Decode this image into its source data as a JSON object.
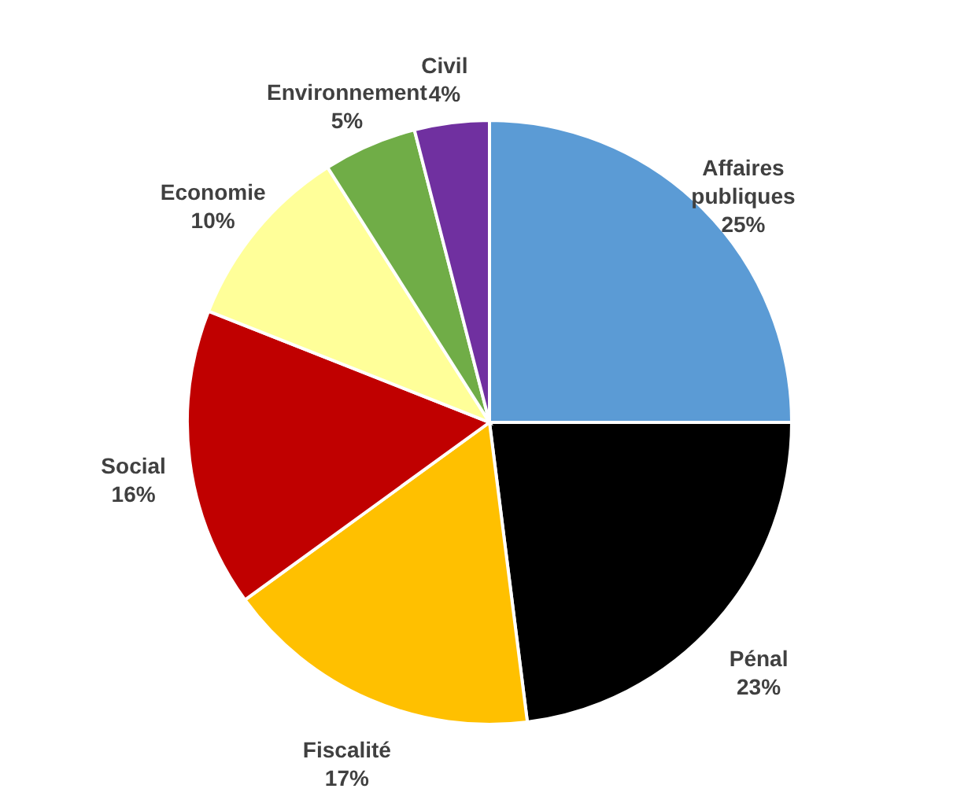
{
  "chart_data": {
    "type": "pie",
    "categories": [
      "Affaires publiques",
      "Pénal",
      "Fiscalité",
      "Social",
      "Economie",
      "Environnement",
      "Civil"
    ],
    "values": [
      25,
      23,
      17,
      16,
      10,
      5,
      4
    ],
    "value_labels": [
      "25%",
      "23%",
      "17%",
      "16%",
      "10%",
      "5%",
      "4%"
    ],
    "colors": [
      "#5b9bd5",
      "#000000",
      "#ffc000",
      "#c00000",
      "#ffff99",
      "#70ad47",
      "#7030a0"
    ]
  }
}
